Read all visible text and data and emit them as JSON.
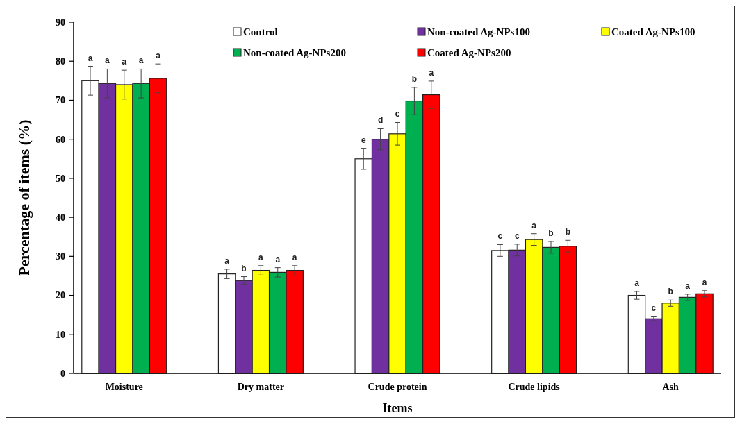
{
  "chart_data": {
    "type": "bar",
    "xlabel": "Items",
    "ylabel": "Percentage of items (%)",
    "categories": [
      "Moisture",
      "Dry matter",
      "Crude protein",
      "Crude lipids",
      "Ash"
    ],
    "series": [
      {
        "name": "Control",
        "color": "#ffffff",
        "values": [
          75,
          25.5,
          55,
          31.5,
          20
        ],
        "errors": [
          3.7,
          1.2,
          2.7,
          1.5,
          1
        ],
        "value_labels": [
          "a",
          "a",
          "e",
          "c",
          "a"
        ]
      },
      {
        "name": "Non-coated Ag-NPs100",
        "color": "#7030a0",
        "values": [
          74.3,
          23.8,
          60,
          31.6,
          14
        ],
        "errors": [
          3.7,
          1,
          2.7,
          1.5,
          0.5
        ],
        "value_labels": [
          "a",
          "b",
          "d",
          "c",
          "c"
        ]
      },
      {
        "name": "Coated Ag-NPs100",
        "color": "#ffff00",
        "values": [
          74,
          26.4,
          61.4,
          34.3,
          18
        ],
        "errors": [
          3.7,
          1.2,
          2.9,
          1.5,
          0.8
        ],
        "value_labels": [
          "a",
          "a",
          "c",
          "a",
          "b"
        ]
      },
      {
        "name": "Non-coated Ag-NPs200",
        "color": "#00b050",
        "values": [
          74.3,
          25.9,
          69.8,
          32.3,
          19.5
        ],
        "errors": [
          3.7,
          1.2,
          3.5,
          1.5,
          0.8
        ],
        "value_labels": [
          "a",
          "a",
          "b",
          "b",
          "a"
        ]
      },
      {
        "name": "Coated Ag-NPs200",
        "color": "#ff0000",
        "values": [
          75.6,
          26.4,
          71.4,
          32.6,
          20.4
        ],
        "errors": [
          3.7,
          1.2,
          3.5,
          1.5,
          0.8
        ],
        "value_labels": [
          "a",
          "a",
          "a",
          "b",
          "a"
        ]
      }
    ],
    "ylim": [
      0,
      90
    ],
    "yticks": [
      0,
      10,
      20,
      30,
      40,
      50,
      60,
      70,
      80,
      90
    ],
    "legend": "top"
  }
}
